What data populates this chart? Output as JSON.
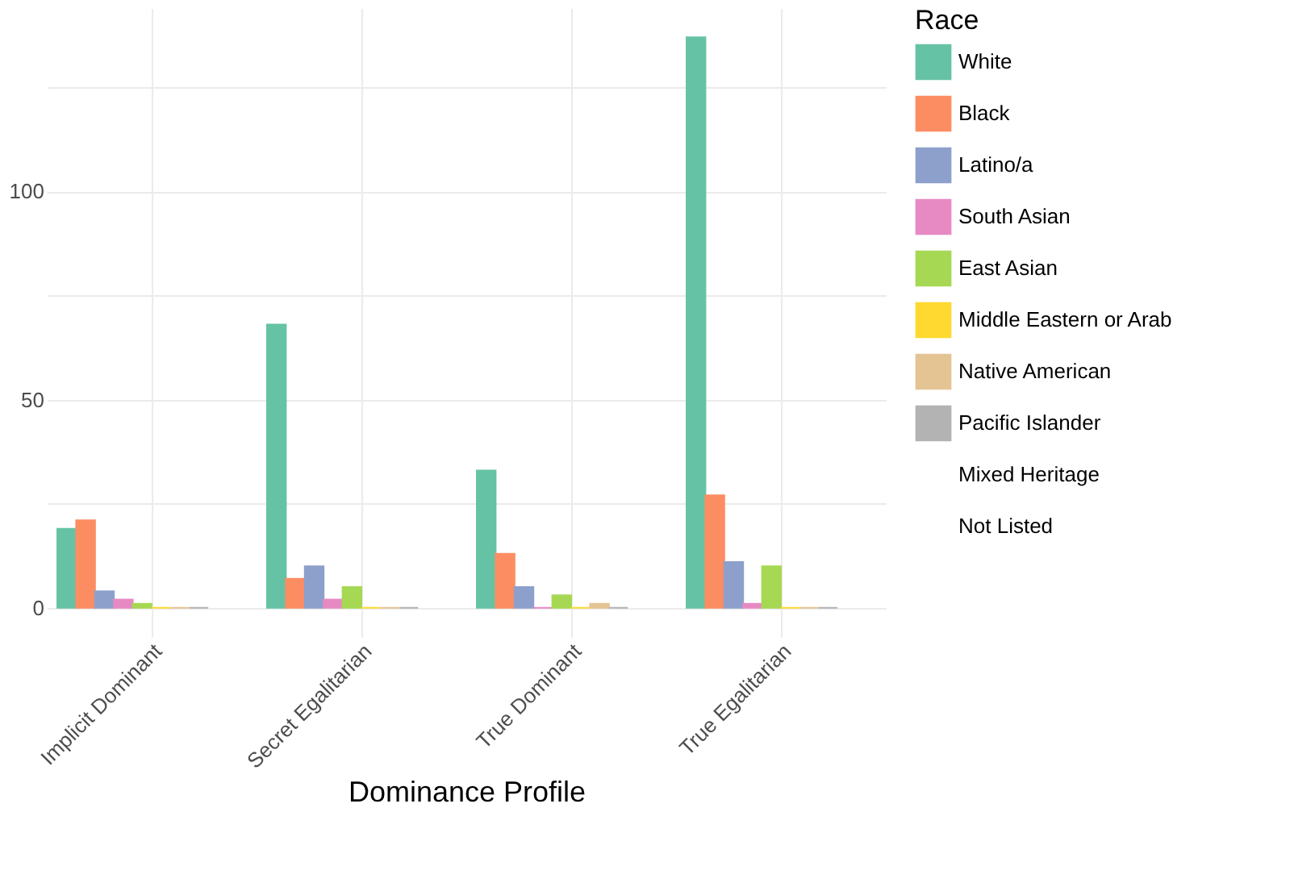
{
  "chart_data": {
    "type": "bar",
    "xlabel": "Dominance Profile",
    "legend_title": "Race",
    "categories": [
      "Implicit Dominant",
      "Secret Egalitarian",
      "True Dominant",
      "True Egalitarian"
    ],
    "series": [
      {
        "name": "White",
        "color": "#66c2a5",
        "values": [
          19,
          68,
          33,
          137
        ]
      },
      {
        "name": "Black",
        "color": "#fc8d62",
        "values": [
          21,
          7,
          13,
          27
        ]
      },
      {
        "name": "Latino/a",
        "color": "#8da0cb",
        "values": [
          4,
          10,
          5,
          11
        ]
      },
      {
        "name": "South Asian",
        "color": "#e78ac3",
        "values": [
          2,
          2,
          0,
          1
        ]
      },
      {
        "name": "East Asian",
        "color": "#a6d854",
        "values": [
          1,
          5,
          3,
          10
        ]
      },
      {
        "name": "Middle Eastern or Arab",
        "color": "#ffd92f",
        "values": [
          0,
          0,
          0,
          0
        ]
      },
      {
        "name": "Native American",
        "color": "#e5c494",
        "values": [
          0,
          0,
          1,
          0
        ]
      },
      {
        "name": "Pacific Islander",
        "color": "#b3b3b3",
        "values": [
          0,
          0,
          0,
          0
        ]
      },
      {
        "name": "Mixed Heritage",
        "values": [
          null,
          null,
          null,
          null
        ]
      },
      {
        "name": "Not Listed",
        "values": [
          null,
          null,
          null,
          null
        ]
      }
    ],
    "ylim": [
      -7,
      144
    ],
    "yticks": [
      0,
      {
        "value": 25,
        "label": null
      },
      50,
      {
        "value": 75,
        "label": null
      },
      100,
      {
        "value": 125,
        "label": null
      }
    ],
    "grid": true,
    "legend": "right"
  }
}
